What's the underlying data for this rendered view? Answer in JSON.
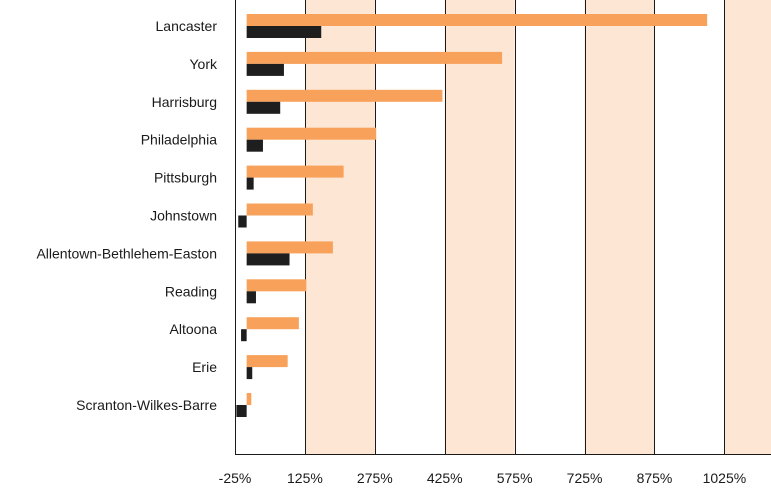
{
  "chart_data": {
    "type": "bar",
    "orientation": "horizontal",
    "title": "",
    "xlabel": "",
    "ylabel": "",
    "x_unit": "%",
    "xlim": [
      -25,
      1125
    ],
    "x_ticks": [
      -25,
      125,
      275,
      425,
      575,
      725,
      875,
      1025
    ],
    "x_tick_labels": [
      "-25%",
      "125%",
      "275%",
      "425%",
      "575%",
      "725%",
      "875%",
      "1025%"
    ],
    "shaded_bands": [
      [
        125,
        275
      ],
      [
        425,
        575
      ],
      [
        725,
        875
      ],
      [
        1025,
        1125
      ]
    ],
    "legend": "none",
    "categories": [
      "Lancaster",
      "York",
      "Harrisburg",
      "Philadelphia",
      "Pittsburgh",
      "Johnstown",
      "Allentown-Bethlehem-Easton",
      "Reading",
      "Altoona",
      "Erie",
      "Scranton-Wilkes-Barre"
    ],
    "series": [
      {
        "color": "#f7a15a",
        "values": [
          988,
          548,
          420,
          278,
          208,
          142,
          185,
          128,
          112,
          88,
          10
        ]
      },
      {
        "color": "#1e1e1e",
        "values": [
          160,
          80,
          72,
          35,
          15,
          -18,
          92,
          20,
          -12,
          12,
          -22
        ]
      }
    ]
  },
  "colors": {
    "band": "#fde6d3",
    "orange_bar": "#f7a15a",
    "dark_bar": "#1e1e1e",
    "gridline": "#1a1a1a"
  }
}
